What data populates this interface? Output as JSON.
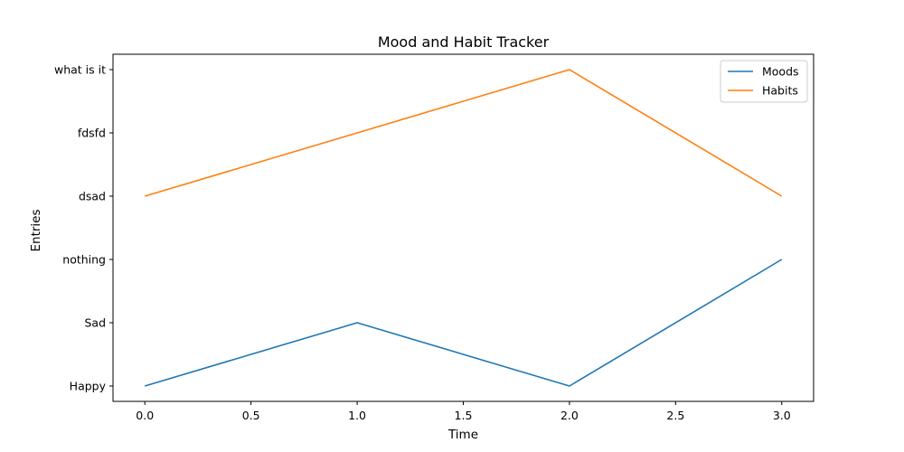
{
  "chart_data": {
    "type": "line",
    "title": "Mood and Habit Tracker",
    "xlabel": "Time",
    "ylabel": "Entries",
    "x_ticks": [
      0.0,
      0.5,
      1.0,
      1.5,
      2.0,
      2.5,
      3.0
    ],
    "x_tick_labels": [
      "0.0",
      "0.5",
      "1.0",
      "1.5",
      "2.0",
      "2.5",
      "3.0"
    ],
    "xlim": [
      -0.15,
      3.15
    ],
    "y_categories": [
      "Happy",
      "Sad",
      "nothing",
      "dsad",
      "fdsfd",
      "what is it"
    ],
    "grid": false,
    "legend_position": "top-right",
    "series": [
      {
        "name": "Moods",
        "color": "#1f77b4",
        "x": [
          0,
          1,
          2,
          3
        ],
        "y": [
          "Happy",
          "Sad",
          "Happy",
          "nothing"
        ]
      },
      {
        "name": "Habits",
        "color": "#ff7f0e",
        "x": [
          0,
          1,
          2,
          3
        ],
        "y": [
          "dsad",
          "fdsfd",
          "what is it",
          "dsad"
        ]
      }
    ]
  }
}
